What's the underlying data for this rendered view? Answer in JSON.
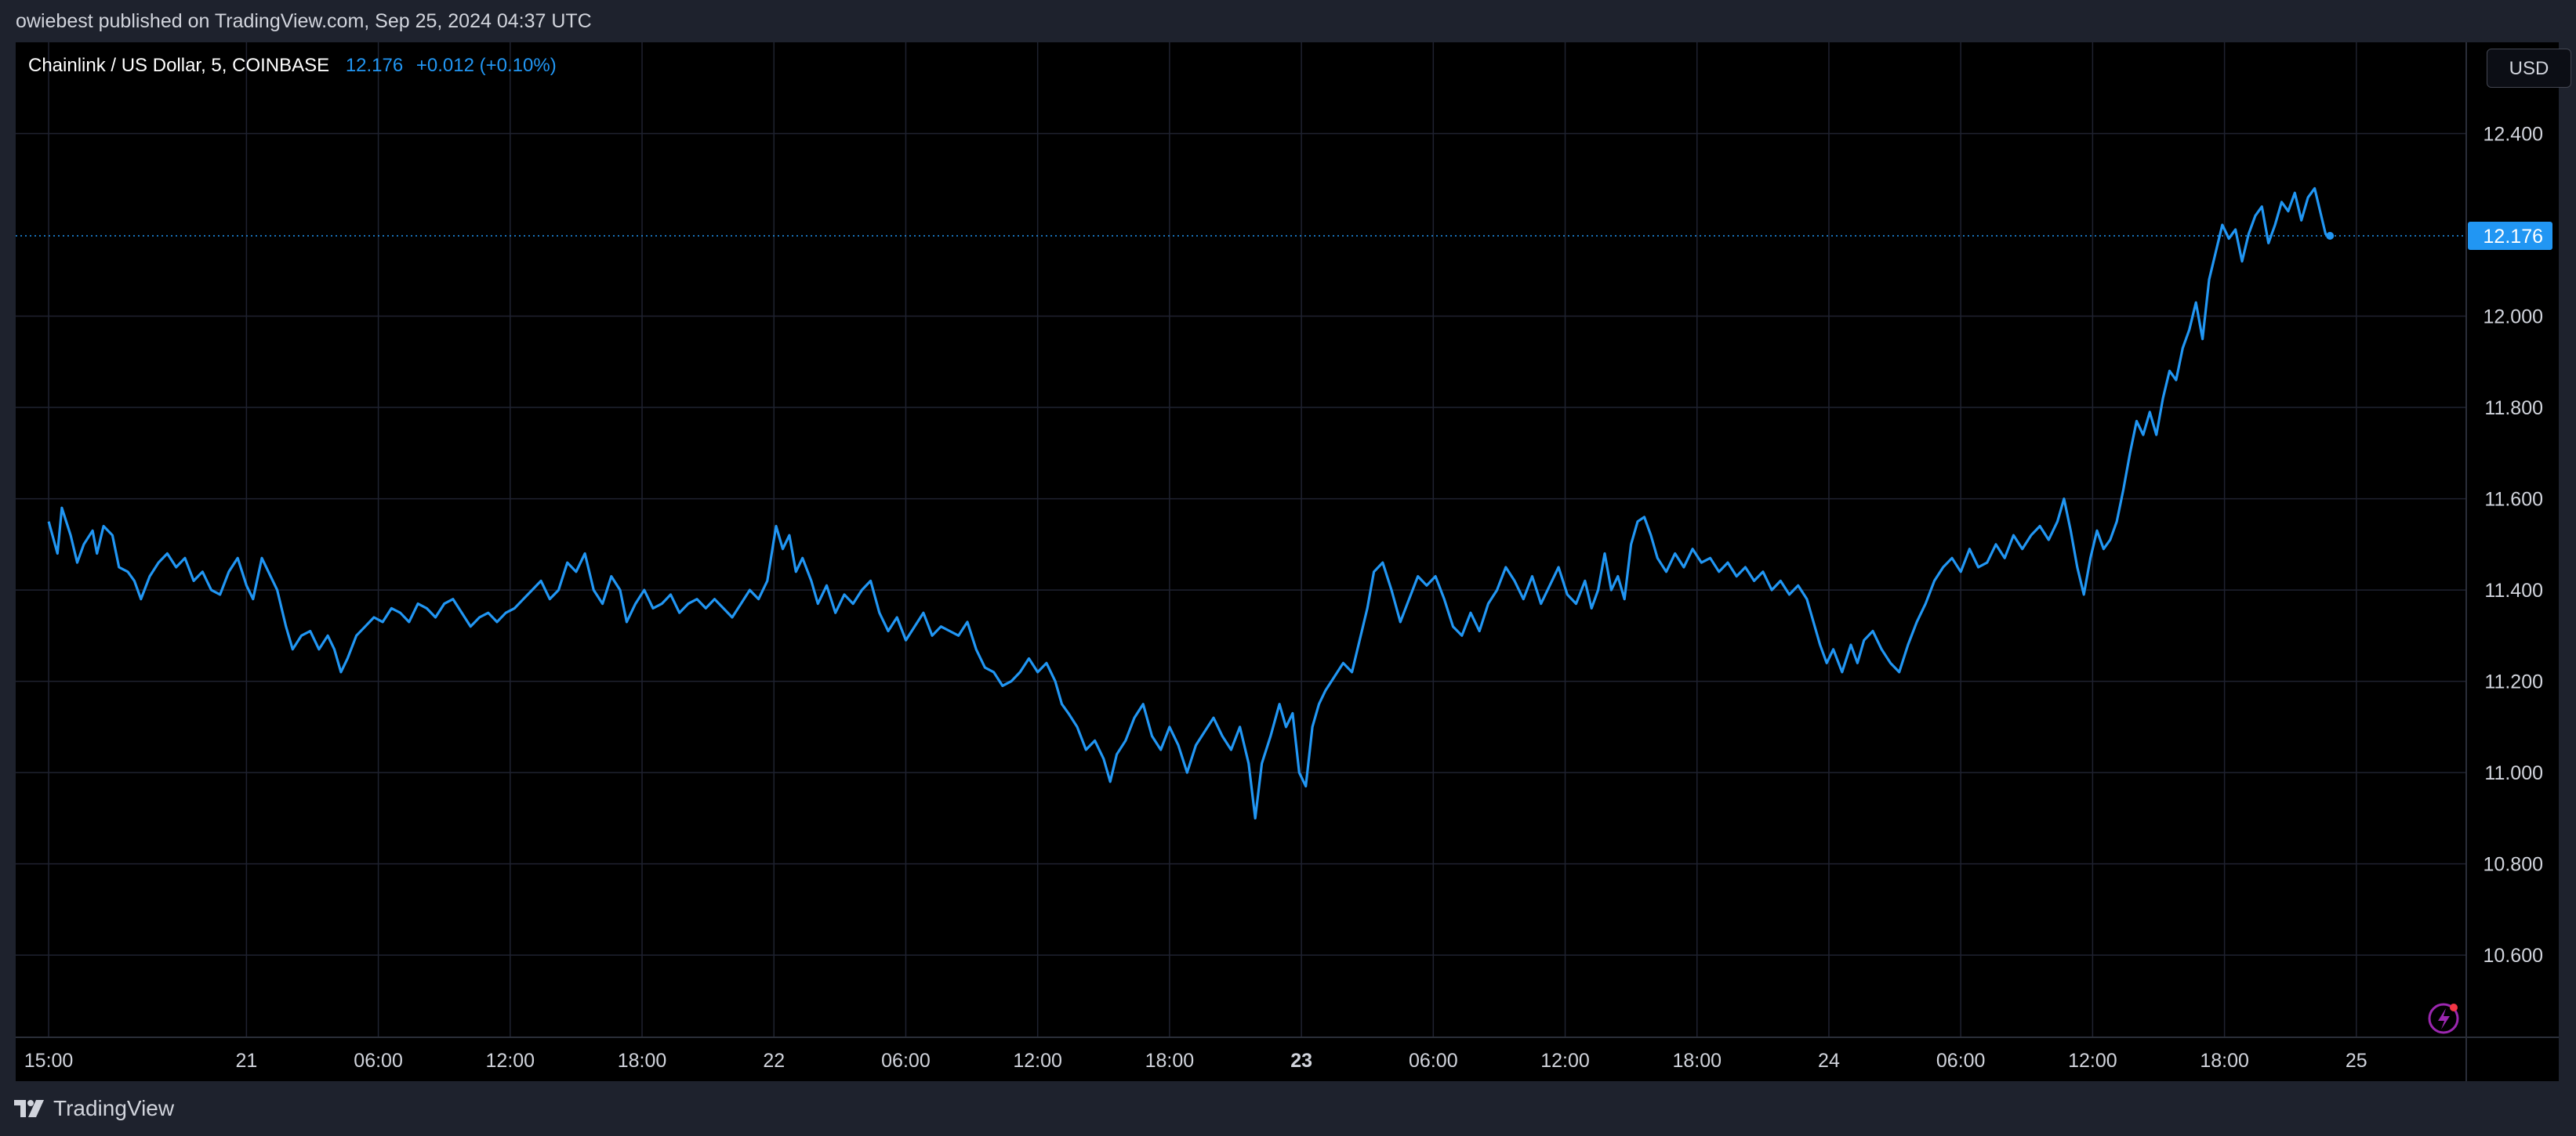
{
  "header": {
    "publisher_text": "owiebest published on TradingView.com, Sep 25, 2024 04:37 UTC"
  },
  "legend": {
    "symbol": "Chainlink / US Dollar, 5, COINBASE",
    "last_price": "12.176",
    "change": "+0.012 (+0.10%)"
  },
  "currency_button": "USD",
  "footer": {
    "brand": "TradingView"
  },
  "colors": {
    "line": "#2196f3",
    "background": "#000000",
    "grid": "#1f2230",
    "axis_text": "#d1d4dc",
    "frame": "#1e222d"
  },
  "chart_data": {
    "type": "line",
    "title": "Chainlink / US Dollar, 5, COINBASE",
    "xlabel": "",
    "ylabel": "",
    "y_unit": "USD",
    "ylim": [
      10.42,
      12.6
    ],
    "grid": true,
    "x_ticks": [
      {
        "label": "15:00",
        "t": 0
      },
      {
        "label": "21",
        "t": 9,
        "bold": false
      },
      {
        "label": "06:00",
        "t": 15
      },
      {
        "label": "12:00",
        "t": 21
      },
      {
        "label": "18:00",
        "t": 27
      },
      {
        "label": "22",
        "t": 33
      },
      {
        "label": "06:00",
        "t": 39
      },
      {
        "label": "12:00",
        "t": 45
      },
      {
        "label": "18:00",
        "t": 51
      },
      {
        "label": "23",
        "t": 57,
        "bold": true
      },
      {
        "label": "06:00",
        "t": 63
      },
      {
        "label": "12:00",
        "t": 69
      },
      {
        "label": "18:00",
        "t": 75
      },
      {
        "label": "24",
        "t": 81
      },
      {
        "label": "06:00",
        "t": 87
      },
      {
        "label": "12:00",
        "t": 93
      },
      {
        "label": "18:00",
        "t": 99
      },
      {
        "label": "25",
        "t": 105
      }
    ],
    "y_ticks": [
      "12.400",
      "12.000",
      "11.800",
      "11.600",
      "11.400",
      "11.200",
      "11.000",
      "10.800",
      "10.600"
    ],
    "y_tick_values": [
      12.4,
      12.0,
      11.8,
      11.6,
      11.4,
      11.2,
      11.0,
      10.8,
      10.6
    ],
    "last_value_label": "12.176",
    "last_value": 12.176,
    "series": [
      {
        "values": [
          [
            0,
            11.55
          ],
          [
            0.4,
            11.48
          ],
          [
            0.6,
            11.58
          ],
          [
            1.0,
            11.52
          ],
          [
            1.3,
            11.46
          ],
          [
            1.6,
            11.5
          ],
          [
            2.0,
            11.53
          ],
          [
            2.2,
            11.48
          ],
          [
            2.5,
            11.54
          ],
          [
            2.9,
            11.52
          ],
          [
            3.2,
            11.45
          ],
          [
            3.6,
            11.44
          ],
          [
            3.9,
            11.42
          ],
          [
            4.2,
            11.38
          ],
          [
            4.6,
            11.43
          ],
          [
            5.0,
            11.46
          ],
          [
            5.4,
            11.48
          ],
          [
            5.8,
            11.45
          ],
          [
            6.2,
            11.47
          ],
          [
            6.6,
            11.42
          ],
          [
            7.0,
            11.44
          ],
          [
            7.4,
            11.4
          ],
          [
            7.8,
            11.39
          ],
          [
            8.2,
            11.44
          ],
          [
            8.6,
            11.47
          ],
          [
            9.0,
            11.41
          ],
          [
            9.3,
            11.38
          ],
          [
            9.7,
            11.47
          ],
          [
            10.0,
            11.44
          ],
          [
            10.4,
            11.4
          ],
          [
            10.8,
            11.32
          ],
          [
            11.1,
            11.27
          ],
          [
            11.5,
            11.3
          ],
          [
            11.9,
            11.31
          ],
          [
            12.3,
            11.27
          ],
          [
            12.7,
            11.3
          ],
          [
            13.0,
            11.27
          ],
          [
            13.3,
            11.22
          ],
          [
            13.6,
            11.25
          ],
          [
            14.0,
            11.3
          ],
          [
            14.4,
            11.32
          ],
          [
            14.8,
            11.34
          ],
          [
            15.2,
            11.33
          ],
          [
            15.6,
            11.36
          ],
          [
            16.0,
            11.35
          ],
          [
            16.4,
            11.33
          ],
          [
            16.8,
            11.37
          ],
          [
            17.2,
            11.36
          ],
          [
            17.6,
            11.34
          ],
          [
            18.0,
            11.37
          ],
          [
            18.4,
            11.38
          ],
          [
            18.8,
            11.35
          ],
          [
            19.2,
            11.32
          ],
          [
            19.6,
            11.34
          ],
          [
            20.0,
            11.35
          ],
          [
            20.4,
            11.33
          ],
          [
            20.8,
            11.35
          ],
          [
            21.2,
            11.36
          ],
          [
            21.6,
            11.38
          ],
          [
            22.0,
            11.4
          ],
          [
            22.4,
            11.42
          ],
          [
            22.8,
            11.38
          ],
          [
            23.2,
            11.4
          ],
          [
            23.6,
            11.46
          ],
          [
            24.0,
            11.44
          ],
          [
            24.4,
            11.48
          ],
          [
            24.8,
            11.4
          ],
          [
            25.2,
            11.37
          ],
          [
            25.6,
            11.43
          ],
          [
            26.0,
            11.4
          ],
          [
            26.3,
            11.33
          ],
          [
            26.7,
            11.37
          ],
          [
            27.1,
            11.4
          ],
          [
            27.5,
            11.36
          ],
          [
            27.9,
            11.37
          ],
          [
            28.3,
            11.39
          ],
          [
            28.7,
            11.35
          ],
          [
            29.1,
            11.37
          ],
          [
            29.5,
            11.38
          ],
          [
            29.9,
            11.36
          ],
          [
            30.3,
            11.38
          ],
          [
            30.7,
            11.36
          ],
          [
            31.1,
            11.34
          ],
          [
            31.5,
            11.37
          ],
          [
            31.9,
            11.4
          ],
          [
            32.3,
            11.38
          ],
          [
            32.7,
            11.42
          ],
          [
            32.9,
            11.48
          ],
          [
            33.1,
            11.54
          ],
          [
            33.4,
            11.49
          ],
          [
            33.7,
            11.52
          ],
          [
            34.0,
            11.44
          ],
          [
            34.3,
            11.47
          ],
          [
            34.7,
            11.42
          ],
          [
            35.0,
            11.37
          ],
          [
            35.4,
            11.41
          ],
          [
            35.8,
            11.35
          ],
          [
            36.2,
            11.39
          ],
          [
            36.6,
            11.37
          ],
          [
            37.0,
            11.4
          ],
          [
            37.4,
            11.42
          ],
          [
            37.8,
            11.35
          ],
          [
            38.2,
            11.31
          ],
          [
            38.6,
            11.34
          ],
          [
            39.0,
            11.29
          ],
          [
            39.4,
            11.32
          ],
          [
            39.8,
            11.35
          ],
          [
            40.2,
            11.3
          ],
          [
            40.6,
            11.32
          ],
          [
            41.0,
            11.31
          ],
          [
            41.4,
            11.3
          ],
          [
            41.8,
            11.33
          ],
          [
            42.2,
            11.27
          ],
          [
            42.6,
            11.23
          ],
          [
            43.0,
            11.22
          ],
          [
            43.4,
            11.19
          ],
          [
            43.8,
            11.2
          ],
          [
            44.2,
            11.22
          ],
          [
            44.6,
            11.25
          ],
          [
            45.0,
            11.22
          ],
          [
            45.4,
            11.24
          ],
          [
            45.8,
            11.2
          ],
          [
            46.1,
            11.15
          ],
          [
            46.4,
            11.13
          ],
          [
            46.8,
            11.1
          ],
          [
            47.2,
            11.05
          ],
          [
            47.6,
            11.07
          ],
          [
            48.0,
            11.03
          ],
          [
            48.3,
            10.98
          ],
          [
            48.6,
            11.04
          ],
          [
            49.0,
            11.07
          ],
          [
            49.4,
            11.12
          ],
          [
            49.8,
            11.15
          ],
          [
            50.2,
            11.08
          ],
          [
            50.6,
            11.05
          ],
          [
            51.0,
            11.1
          ],
          [
            51.4,
            11.06
          ],
          [
            51.8,
            11.0
          ],
          [
            52.2,
            11.06
          ],
          [
            52.6,
            11.09
          ],
          [
            53.0,
            11.12
          ],
          [
            53.4,
            11.08
          ],
          [
            53.8,
            11.05
          ],
          [
            54.2,
            11.1
          ],
          [
            54.6,
            11.02
          ],
          [
            54.9,
            10.9
          ],
          [
            55.2,
            11.02
          ],
          [
            55.6,
            11.08
          ],
          [
            56.0,
            11.15
          ],
          [
            56.3,
            11.1
          ],
          [
            56.6,
            11.13
          ],
          [
            56.9,
            11.0
          ],
          [
            57.2,
            10.97
          ],
          [
            57.5,
            11.1
          ],
          [
            57.8,
            11.15
          ],
          [
            58.1,
            11.18
          ],
          [
            58.5,
            11.21
          ],
          [
            58.9,
            11.24
          ],
          [
            59.3,
            11.22
          ],
          [
            59.7,
            11.3
          ],
          [
            60.0,
            11.36
          ],
          [
            60.3,
            11.44
          ],
          [
            60.7,
            11.46
          ],
          [
            61.1,
            11.4
          ],
          [
            61.5,
            11.33
          ],
          [
            61.9,
            11.38
          ],
          [
            62.3,
            11.43
          ],
          [
            62.7,
            11.41
          ],
          [
            63.1,
            11.43
          ],
          [
            63.5,
            11.38
          ],
          [
            63.9,
            11.32
          ],
          [
            64.3,
            11.3
          ],
          [
            64.7,
            11.35
          ],
          [
            65.1,
            11.31
          ],
          [
            65.5,
            11.37
          ],
          [
            65.9,
            11.4
          ],
          [
            66.3,
            11.45
          ],
          [
            66.7,
            11.42
          ],
          [
            67.1,
            11.38
          ],
          [
            67.5,
            11.43
          ],
          [
            67.9,
            11.37
          ],
          [
            68.3,
            11.41
          ],
          [
            68.7,
            11.45
          ],
          [
            69.1,
            11.39
          ],
          [
            69.5,
            11.37
          ],
          [
            69.9,
            11.42
          ],
          [
            70.2,
            11.36
          ],
          [
            70.5,
            11.4
          ],
          [
            70.8,
            11.48
          ],
          [
            71.1,
            11.4
          ],
          [
            71.4,
            11.43
          ],
          [
            71.7,
            11.38
          ],
          [
            72.0,
            11.5
          ],
          [
            72.3,
            11.55
          ],
          [
            72.6,
            11.56
          ],
          [
            72.9,
            11.52
          ],
          [
            73.2,
            11.47
          ],
          [
            73.6,
            11.44
          ],
          [
            74.0,
            11.48
          ],
          [
            74.4,
            11.45
          ],
          [
            74.8,
            11.49
          ],
          [
            75.2,
            11.46
          ],
          [
            75.6,
            11.47
          ],
          [
            76.0,
            11.44
          ],
          [
            76.4,
            11.46
          ],
          [
            76.8,
            11.43
          ],
          [
            77.2,
            11.45
          ],
          [
            77.6,
            11.42
          ],
          [
            78.0,
            11.44
          ],
          [
            78.4,
            11.4
          ],
          [
            78.8,
            11.42
          ],
          [
            79.2,
            11.39
          ],
          [
            79.6,
            11.41
          ],
          [
            80.0,
            11.38
          ],
          [
            80.3,
            11.33
          ],
          [
            80.6,
            11.28
          ],
          [
            80.9,
            11.24
          ],
          [
            81.2,
            11.27
          ],
          [
            81.6,
            11.22
          ],
          [
            82.0,
            11.28
          ],
          [
            82.3,
            11.24
          ],
          [
            82.6,
            11.29
          ],
          [
            83.0,
            11.31
          ],
          [
            83.4,
            11.27
          ],
          [
            83.8,
            11.24
          ],
          [
            84.2,
            11.22
          ],
          [
            84.6,
            11.28
          ],
          [
            85.0,
            11.33
          ],
          [
            85.4,
            11.37
          ],
          [
            85.8,
            11.42
          ],
          [
            86.2,
            11.45
          ],
          [
            86.6,
            11.47
          ],
          [
            87.0,
            11.44
          ],
          [
            87.4,
            11.49
          ],
          [
            87.8,
            11.45
          ],
          [
            88.2,
            11.46
          ],
          [
            88.6,
            11.5
          ],
          [
            89.0,
            11.47
          ],
          [
            89.4,
            11.52
          ],
          [
            89.8,
            11.49
          ],
          [
            90.2,
            11.52
          ],
          [
            90.6,
            11.54
          ],
          [
            91.0,
            11.51
          ],
          [
            91.4,
            11.55
          ],
          [
            91.7,
            11.6
          ],
          [
            92.0,
            11.53
          ],
          [
            92.3,
            11.45
          ],
          [
            92.6,
            11.39
          ],
          [
            92.9,
            11.47
          ],
          [
            93.2,
            11.53
          ],
          [
            93.5,
            11.49
          ],
          [
            93.8,
            11.51
          ],
          [
            94.1,
            11.55
          ],
          [
            94.4,
            11.62
          ],
          [
            94.7,
            11.7
          ],
          [
            95.0,
            11.77
          ],
          [
            95.3,
            11.74
          ],
          [
            95.6,
            11.79
          ],
          [
            95.9,
            11.74
          ],
          [
            96.2,
            11.82
          ],
          [
            96.5,
            11.88
          ],
          [
            96.8,
            11.86
          ],
          [
            97.1,
            11.93
          ],
          [
            97.4,
            11.97
          ],
          [
            97.7,
            12.03
          ],
          [
            98.0,
            11.95
          ],
          [
            98.3,
            12.08
          ],
          [
            98.6,
            12.14
          ],
          [
            98.9,
            12.2
          ],
          [
            99.2,
            12.17
          ],
          [
            99.5,
            12.19
          ],
          [
            99.8,
            12.12
          ],
          [
            100.1,
            12.18
          ],
          [
            100.4,
            12.22
          ],
          [
            100.7,
            12.24
          ],
          [
            101.0,
            12.16
          ],
          [
            101.3,
            12.2
          ],
          [
            101.6,
            12.25
          ],
          [
            101.9,
            12.23
          ],
          [
            102.2,
            12.27
          ],
          [
            102.5,
            12.21
          ],
          [
            102.8,
            12.26
          ],
          [
            103.1,
            12.28
          ],
          [
            103.4,
            12.22
          ],
          [
            103.6,
            12.18
          ],
          [
            103.8,
            12.176
          ]
        ]
      }
    ]
  }
}
